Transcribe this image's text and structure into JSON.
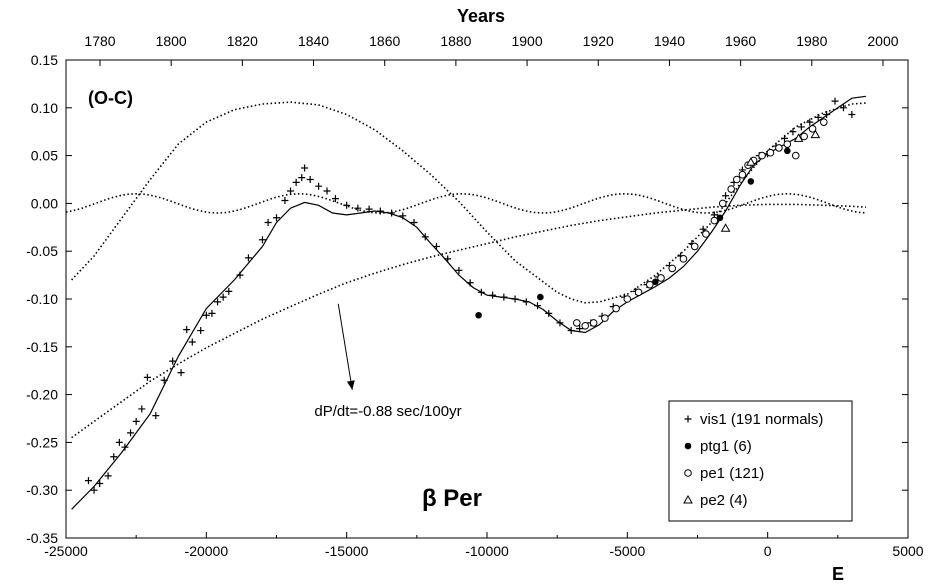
{
  "chart_data": {
    "type": "scatter",
    "top_axis_title": "Years",
    "bottom_axis_title": "E",
    "title": "β Per",
    "corner_label": "(O-C)",
    "annotation": "dP/dt=-0.88 sec/100yr",
    "xlim": [
      -25000,
      5000
    ],
    "ylim": [
      -0.35,
      0.15
    ],
    "top_axis_years": [
      1780,
      1800,
      1820,
      1840,
      1860,
      1880,
      1900,
      1920,
      1940,
      1960,
      1980,
      2000
    ],
    "top_axis_year_at_E0": 1967.6,
    "top_axis_years_per_epoch": 0.007886,
    "x_ticks": [
      -25000,
      -20000,
      -15000,
      -10000,
      -5000,
      0,
      5000
    ],
    "x_tick_labels": [
      "-25000",
      "-20000",
      "-15000",
      "-10000",
      "-5000",
      "0",
      "5000"
    ],
    "y_ticks": [
      0.15,
      0.1,
      0.05,
      0.0,
      -0.05,
      -0.1,
      -0.15,
      -0.2,
      -0.25,
      -0.3,
      -0.35
    ],
    "y_tick_labels": [
      "0.15",
      "0.10",
      "0.05",
      "0.00",
      "-0.05",
      "-0.10",
      "-0.15",
      "-0.20",
      "-0.25",
      "-0.30",
      "-0.35"
    ],
    "legend_position": "bottom-right",
    "legend": [
      {
        "marker": "plus",
        "label": "vis1 (191 normals)"
      },
      {
        "marker": "filled-circle",
        "label": "ptg1 (6)"
      },
      {
        "marker": "open-circle",
        "label": "pe1 (121)"
      },
      {
        "marker": "triangle",
        "label": "pe2 (4)"
      }
    ],
    "series": [
      {
        "name": "vis1 (191 normals)",
        "marker": "plus",
        "points": [
          [
            -24200,
            -0.29
          ],
          [
            -24000,
            -0.3
          ],
          [
            -23800,
            -0.293
          ],
          [
            -23500,
            -0.285
          ],
          [
            -23300,
            -0.265
          ],
          [
            -23100,
            -0.25
          ],
          [
            -22900,
            -0.255
          ],
          [
            -22700,
            -0.24
          ],
          [
            -22500,
            -0.228
          ],
          [
            -22300,
            -0.215
          ],
          [
            -22100,
            -0.182
          ],
          [
            -21800,
            -0.222
          ],
          [
            -21500,
            -0.185
          ],
          [
            -21200,
            -0.165
          ],
          [
            -20900,
            -0.177
          ],
          [
            -20700,
            -0.132
          ],
          [
            -20500,
            -0.145
          ],
          [
            -20200,
            -0.133
          ],
          [
            -20000,
            -0.117
          ],
          [
            -19800,
            -0.115
          ],
          [
            -19600,
            -0.103
          ],
          [
            -19400,
            -0.098
          ],
          [
            -19200,
            -0.092
          ],
          [
            -18800,
            -0.075
          ],
          [
            -18500,
            -0.057
          ],
          [
            -18000,
            -0.038
          ],
          [
            -17800,
            -0.02
          ],
          [
            -17500,
            -0.015
          ],
          [
            -17200,
            0.003
          ],
          [
            -17000,
            0.013
          ],
          [
            -16800,
            0.022
          ],
          [
            -16600,
            0.027
          ],
          [
            -16500,
            0.037
          ],
          [
            -16300,
            0.025
          ],
          [
            -16000,
            0.018
          ],
          [
            -15700,
            0.013
          ],
          [
            -15400,
            0.005
          ],
          [
            -15000,
            -0.002
          ],
          [
            -14600,
            -0.005
          ],
          [
            -14200,
            -0.006
          ],
          [
            -13800,
            -0.008
          ],
          [
            -13400,
            -0.01
          ],
          [
            -13000,
            -0.013
          ],
          [
            -12600,
            -0.02
          ],
          [
            -12200,
            -0.035
          ],
          [
            -11800,
            -0.045
          ],
          [
            -11400,
            -0.058
          ],
          [
            -11000,
            -0.07
          ],
          [
            -10600,
            -0.083
          ],
          [
            -10200,
            -0.093
          ],
          [
            -9800,
            -0.096
          ],
          [
            -9400,
            -0.098
          ],
          [
            -9000,
            -0.1
          ],
          [
            -8600,
            -0.103
          ],
          [
            -8200,
            -0.107
          ],
          [
            -7800,
            -0.115
          ],
          [
            -7400,
            -0.125
          ],
          [
            -7000,
            -0.133
          ],
          [
            -6700,
            -0.131
          ],
          [
            -6300,
            -0.125
          ],
          [
            -5900,
            -0.118
          ],
          [
            -5500,
            -0.108
          ],
          [
            -5100,
            -0.098
          ],
          [
            -4700,
            -0.092
          ],
          [
            -4300,
            -0.085
          ],
          [
            -3900,
            -0.077
          ],
          [
            -3500,
            -0.065
          ],
          [
            -3100,
            -0.055
          ],
          [
            -2700,
            -0.042
          ],
          [
            -2300,
            -0.027
          ],
          [
            -1900,
            -0.012
          ],
          [
            -1500,
            0.008
          ],
          [
            -1200,
            0.022
          ],
          [
            -900,
            0.035
          ],
          [
            -600,
            0.043
          ],
          [
            -300,
            0.05
          ],
          [
            0,
            0.052
          ],
          [
            300,
            0.06
          ],
          [
            600,
            0.068
          ],
          [
            900,
            0.075
          ],
          [
            1200,
            0.08
          ],
          [
            1500,
            0.085
          ],
          [
            1800,
            0.09
          ],
          [
            2100,
            0.093
          ],
          [
            2400,
            0.107
          ],
          [
            2700,
            0.1
          ],
          [
            3000,
            0.093
          ]
        ]
      },
      {
        "name": "ptg1 (6)",
        "marker": "filled-circle",
        "points": [
          [
            -10300,
            -0.117
          ],
          [
            -8100,
            -0.098
          ],
          [
            -4000,
            -0.082
          ],
          [
            -1700,
            -0.015
          ],
          [
            -600,
            0.023
          ],
          [
            700,
            0.055
          ]
        ]
      },
      {
        "name": "pe1 (121)",
        "marker": "open-circle",
        "points": [
          [
            -6800,
            -0.125
          ],
          [
            -6500,
            -0.128
          ],
          [
            -6200,
            -0.125
          ],
          [
            -5800,
            -0.12
          ],
          [
            -5400,
            -0.11
          ],
          [
            -5000,
            -0.1
          ],
          [
            -4600,
            -0.093
          ],
          [
            -4200,
            -0.085
          ],
          [
            -3800,
            -0.078
          ],
          [
            -3400,
            -0.068
          ],
          [
            -3000,
            -0.058
          ],
          [
            -2600,
            -0.045
          ],
          [
            -2200,
            -0.032
          ],
          [
            -1900,
            -0.018
          ],
          [
            -1600,
            0.0
          ],
          [
            -1300,
            0.015
          ],
          [
            -1100,
            0.025
          ],
          [
            -900,
            0.03
          ],
          [
            -700,
            0.04
          ],
          [
            -500,
            0.045
          ],
          [
            -200,
            0.05
          ],
          [
            100,
            0.053
          ],
          [
            400,
            0.058
          ],
          [
            700,
            0.062
          ],
          [
            1000,
            0.05
          ],
          [
            1300,
            0.07
          ],
          [
            1600,
            0.078
          ],
          [
            2000,
            0.085
          ]
        ]
      },
      {
        "name": "pe2 (4)",
        "marker": "triangle",
        "points": [
          [
            -1500,
            -0.026
          ],
          [
            -600,
            0.043
          ],
          [
            1100,
            0.068
          ],
          [
            1700,
            0.072
          ]
        ]
      }
    ],
    "curves": {
      "fit": [
        [
          -24800,
          -0.32
        ],
        [
          -24000,
          -0.296
        ],
        [
          -23000,
          -0.26
        ],
        [
          -22000,
          -0.22
        ],
        [
          -21000,
          -0.16
        ],
        [
          -20000,
          -0.11
        ],
        [
          -19000,
          -0.08
        ],
        [
          -18000,
          -0.045
        ],
        [
          -17500,
          -0.02
        ],
        [
          -17000,
          -0.005
        ],
        [
          -16500,
          0.001
        ],
        [
          -16000,
          -0.002
        ],
        [
          -15500,
          -0.01
        ],
        [
          -15000,
          -0.012
        ],
        [
          -14500,
          -0.01
        ],
        [
          -14000,
          -0.008
        ],
        [
          -13500,
          -0.01
        ],
        [
          -13000,
          -0.015
        ],
        [
          -12500,
          -0.025
        ],
        [
          -12000,
          -0.042
        ],
        [
          -11500,
          -0.058
        ],
        [
          -11000,
          -0.075
        ],
        [
          -10500,
          -0.088
        ],
        [
          -10000,
          -0.096
        ],
        [
          -9500,
          -0.098
        ],
        [
          -9000,
          -0.1
        ],
        [
          -8500,
          -0.103
        ],
        [
          -8000,
          -0.111
        ],
        [
          -7500,
          -0.123
        ],
        [
          -7000,
          -0.133
        ],
        [
          -6500,
          -0.135
        ],
        [
          -6000,
          -0.127
        ],
        [
          -5500,
          -0.113
        ],
        [
          -5000,
          -0.103
        ],
        [
          -4500,
          -0.095
        ],
        [
          -4000,
          -0.087
        ],
        [
          -3500,
          -0.078
        ],
        [
          -3000,
          -0.066
        ],
        [
          -2500,
          -0.05
        ],
        [
          -2000,
          -0.03
        ],
        [
          -1500,
          -0.008
        ],
        [
          -1000,
          0.018
        ],
        [
          -500,
          0.04
        ],
        [
          0,
          0.052
        ],
        [
          500,
          0.06
        ],
        [
          1000,
          0.068
        ],
        [
          1500,
          0.08
        ],
        [
          2000,
          0.09
        ],
        [
          2500,
          0.1
        ],
        [
          3000,
          0.11
        ],
        [
          3500,
          0.112
        ]
      ],
      "sinusoid": [
        [
          -24800,
          -0.08
        ],
        [
          -24000,
          -0.055
        ],
        [
          -23000,
          -0.015
        ],
        [
          -22000,
          0.025
        ],
        [
          -21000,
          0.062
        ],
        [
          -20000,
          0.085
        ],
        [
          -19000,
          0.098
        ],
        [
          -18000,
          0.104
        ],
        [
          -17000,
          0.106
        ],
        [
          -16000,
          0.103
        ],
        [
          -15000,
          0.093
        ],
        [
          -14000,
          0.077
        ],
        [
          -13000,
          0.055
        ],
        [
          -12000,
          0.03
        ],
        [
          -11000,
          0.002
        ],
        [
          -10000,
          -0.03
        ],
        [
          -9000,
          -0.06
        ],
        [
          -8000,
          -0.082
        ],
        [
          -7500,
          -0.093
        ],
        [
          -7000,
          -0.1
        ],
        [
          -6500,
          -0.104
        ],
        [
          -6000,
          -0.103
        ],
        [
          -5000,
          -0.095
        ],
        [
          -4000,
          -0.075
        ],
        [
          -3000,
          -0.05
        ],
        [
          -2000,
          -0.02
        ],
        [
          -1000,
          0.02
        ],
        [
          0,
          0.055
        ],
        [
          1000,
          0.08
        ],
        [
          2000,
          0.095
        ],
        [
          3000,
          0.104
        ],
        [
          3500,
          0.105
        ]
      ],
      "parabola": [
        [
          -24800,
          -0.245
        ],
        [
          -24000,
          -0.228
        ],
        [
          -23000,
          -0.207
        ],
        [
          -22000,
          -0.186
        ],
        [
          -21000,
          -0.168
        ],
        [
          -20000,
          -0.151
        ],
        [
          -19000,
          -0.136
        ],
        [
          -18000,
          -0.121
        ],
        [
          -17000,
          -0.108
        ],
        [
          -16000,
          -0.095
        ],
        [
          -15000,
          -0.083
        ],
        [
          -14000,
          -0.073
        ],
        [
          -13000,
          -0.064
        ],
        [
          -12000,
          -0.056
        ],
        [
          -11000,
          -0.049
        ],
        [
          -10000,
          -0.042
        ],
        [
          -9000,
          -0.035
        ],
        [
          -8000,
          -0.029
        ],
        [
          -7000,
          -0.023
        ],
        [
          -6000,
          -0.018
        ],
        [
          -5000,
          -0.014
        ],
        [
          -4000,
          -0.01
        ],
        [
          -3000,
          -0.007
        ],
        [
          -2000,
          -0.004
        ],
        [
          -1000,
          -0.002
        ],
        [
          0,
          -0.001
        ],
        [
          1000,
          -0.001
        ],
        [
          2000,
          -0.002
        ],
        [
          3000,
          -0.003
        ],
        [
          3500,
          -0.004
        ]
      ],
      "small_sinusoid": {
        "amplitude": 0.01,
        "period": 5800,
        "phase_zero_at": -16700,
        "x_range": [
          -25000,
          3500
        ]
      }
    },
    "annotation_arrow": {
      "from": [
        -15300,
        -0.105
      ],
      "to": [
        -14800,
        -0.195
      ]
    }
  }
}
